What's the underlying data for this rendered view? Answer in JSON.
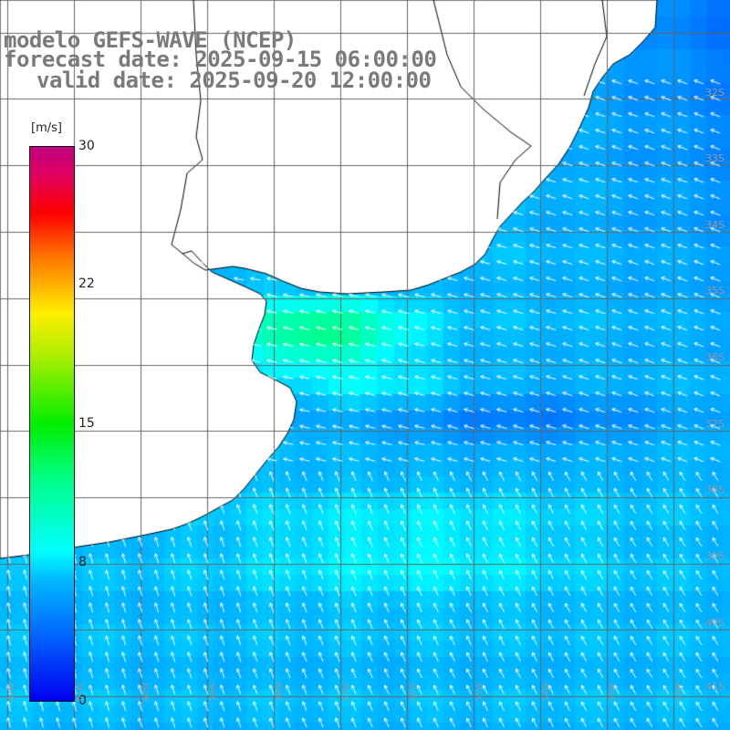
{
  "title": {
    "line1": "modelo GEFS-WAVE (NCEP)",
    "line2": "forecast date: 2025-09-15 06:00:00",
    "line3": "valid date: 2025-09-20 12:00:00"
  },
  "colorbar": {
    "unit": "[m/s]",
    "min": 0,
    "max": 30,
    "ticks": [
      "30",
      "22",
      "15",
      "8",
      "0"
    ]
  },
  "grid": {
    "lat_labels": [
      "32S",
      "33S",
      "34S",
      "35S",
      "36S",
      "37S",
      "38S",
      "39S",
      "40S",
      "41S"
    ],
    "lon_labels": [
      "62W",
      "61W",
      "60W",
      "59W",
      "58W",
      "57W",
      "56W",
      "55W",
      "54W",
      "53W",
      "52W"
    ]
  },
  "colors": {
    "land": "#ffffff",
    "coast": "#000000",
    "grid": "#666666",
    "arrow": "#ffffff",
    "title": "#7a7a7a"
  },
  "wind": {
    "arrow_direction": "mostly toward west / north-west",
    "max_area_speed": "about 12 m/s near the estuary mouth"
  }
}
